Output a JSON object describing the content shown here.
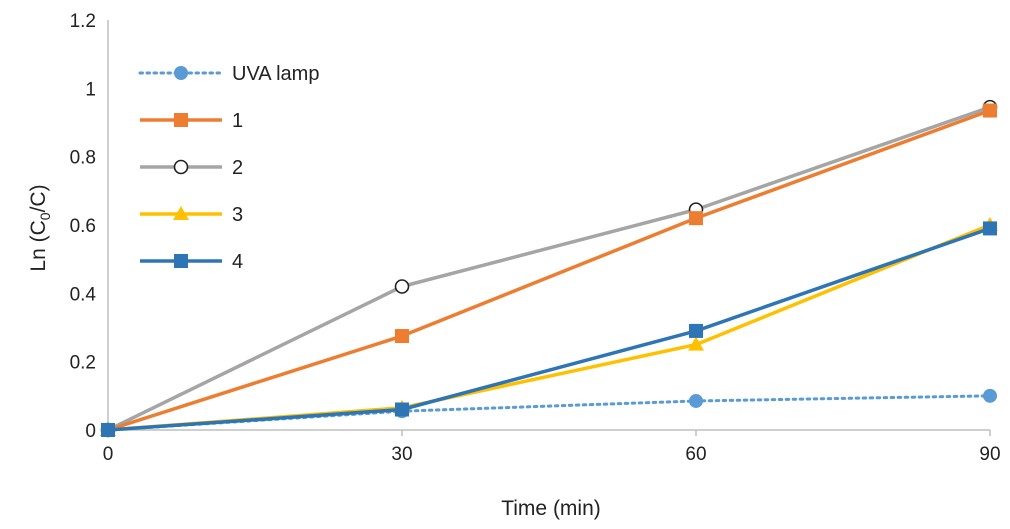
{
  "chart_data": {
    "type": "line",
    "title": "",
    "xlabel": "Time (min)",
    "ylabel_parts": {
      "prefix": "Ln (C",
      "subscript": "0",
      "suffix": "/C)"
    },
    "x": [
      0,
      30,
      60,
      90
    ],
    "xlim": [
      0,
      90
    ],
    "ylim": [
      0,
      1.2
    ],
    "x_ticks": [
      "0",
      "30",
      "60",
      "90"
    ],
    "y_ticks": [
      "0",
      "0.2",
      "0.4",
      "0.6",
      "0.8",
      "1",
      "1.2"
    ],
    "legend_position": "top-left",
    "series": [
      {
        "name": "UVA lamp",
        "values": [
          0,
          0.055,
          0.085,
          0.1
        ],
        "color": "#5b9bd5",
        "marker": "circle-filled",
        "dash": "dotted"
      },
      {
        "name": "1",
        "values": [
          0,
          0.275,
          0.62,
          0.935
        ],
        "color": "#ed7d31",
        "marker": "square",
        "dash": "solid"
      },
      {
        "name": "2",
        "values": [
          0,
          0.42,
          0.645,
          0.945
        ],
        "color": "#a5a5a5",
        "marker": "circle-open",
        "dash": "solid"
      },
      {
        "name": "3",
        "values": [
          0,
          0.065,
          0.25,
          0.6
        ],
        "color": "#ffc000",
        "marker": "triangle",
        "dash": "solid"
      },
      {
        "name": "4",
        "values": [
          0,
          0.06,
          0.29,
          0.59
        ],
        "color": "#2e75b6",
        "marker": "square",
        "dash": "solid"
      }
    ]
  }
}
